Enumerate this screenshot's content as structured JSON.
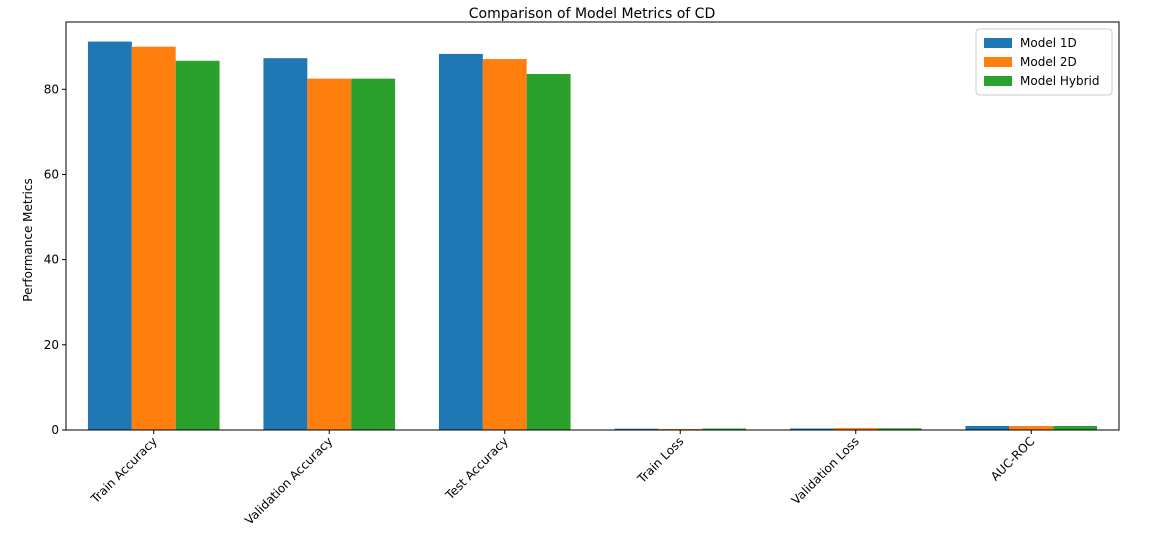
{
  "chart_data": {
    "type": "bar",
    "title": "Comparison of Model Metrics of CD",
    "xlabel": "",
    "ylabel": "Performance Metrics",
    "categories": [
      "Train Accuracy",
      "Validation Accuracy",
      "Test Accuracy",
      "Train Loss",
      "Validation Loss",
      "AUC-ROC"
    ],
    "series": [
      {
        "name": "Model 1D",
        "color": "#1f77b4",
        "values": [
          91.2,
          87.3,
          88.3,
          0.3,
          0.35,
          0.95
        ]
      },
      {
        "name": "Model 2D",
        "color": "#ff7f0e",
        "values": [
          90.0,
          82.5,
          87.1,
          0.25,
          0.45,
          0.93
        ]
      },
      {
        "name": "Model Hybrid",
        "color": "#2ca02c",
        "values": [
          86.7,
          82.5,
          83.6,
          0.35,
          0.4,
          0.94
        ]
      }
    ],
    "yticks": [
      0,
      20,
      40,
      60,
      80
    ],
    "ylim": [
      0,
      95.8
    ],
    "legend_position": "top-right",
    "grid": false
  }
}
